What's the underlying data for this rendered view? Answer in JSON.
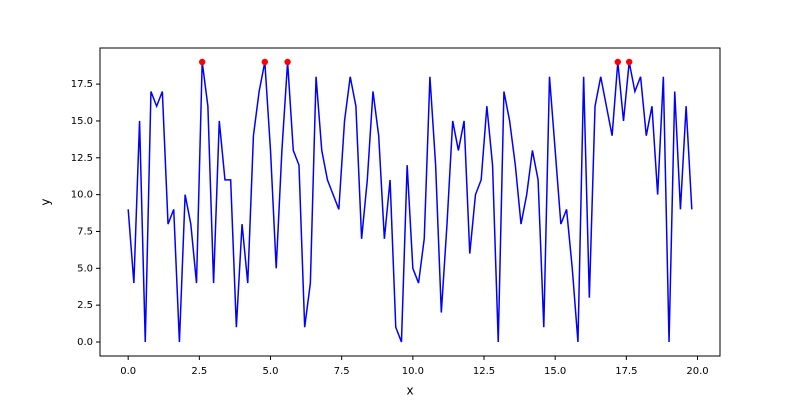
{
  "chart_data": {
    "type": "line",
    "xlabel": "x",
    "ylabel": "y",
    "x": [
      0,
      0.2,
      0.4,
      0.6,
      0.8,
      1,
      1.2,
      1.4,
      1.6,
      1.8,
      2,
      2.2,
      2.4,
      2.6,
      2.8,
      3,
      3.2,
      3.4,
      3.6,
      3.8,
      4,
      4.2,
      4.4,
      4.6,
      4.8,
      5,
      5.2,
      5.4,
      5.6,
      5.8,
      6,
      6.2,
      6.4,
      6.6,
      6.8,
      7,
      7.2,
      7.4,
      7.6,
      7.8,
      8,
      8.2,
      8.4,
      8.6,
      8.8,
      9,
      9.2,
      9.4,
      9.6,
      9.8,
      10,
      10.2,
      10.4,
      10.6,
      10.8,
      11,
      11.2,
      11.4,
      11.6,
      11.8,
      12,
      12.2,
      12.4,
      12.6,
      12.8,
      13,
      13.2,
      13.4,
      13.6,
      13.8,
      14,
      14.2,
      14.4,
      14.6,
      14.8,
      15,
      15.2,
      15.4,
      15.6,
      15.8,
      16,
      16.2,
      16.4,
      16.6,
      16.8,
      17,
      17.2,
      17.4,
      17.6,
      17.8,
      18,
      18.2,
      18.4,
      18.6,
      18.8,
      19,
      19.2,
      19.4,
      19.6,
      19.8
    ],
    "series": [
      {
        "color": "#0000ff",
        "values": [
          9,
          4,
          15,
          0,
          17,
          16,
          17,
          8,
          9,
          0,
          10,
          8,
          4,
          19,
          16,
          4,
          15,
          11,
          11,
          1,
          8,
          4,
          14,
          17,
          19,
          13,
          5,
          13,
          19,
          13,
          12,
          1,
          4,
          18,
          13,
          11,
          10,
          9,
          15,
          18,
          16,
          7,
          11,
          17,
          14,
          7,
          11,
          1,
          0,
          12,
          5,
          4,
          7,
          18,
          12,
          2,
          8,
          15,
          13,
          15,
          6,
          10,
          11,
          16,
          12,
          0,
          17,
          15,
          12,
          8,
          10,
          13,
          11,
          1,
          18,
          13,
          8,
          9,
          5,
          0,
          18,
          3,
          16,
          18,
          16,
          14,
          19,
          15,
          19,
          17,
          18,
          14,
          16,
          10,
          18,
          0,
          17,
          9,
          16,
          9
        ]
      },
      {
        "type": "scatter",
        "color": "#ff0000",
        "x": [
          2.6,
          4.8,
          5.6,
          17.2,
          17.6
        ],
        "values": [
          19,
          19,
          19,
          19,
          19
        ]
      }
    ],
    "xlim": [
      -0.99,
      20.79
    ],
    "ylim": [
      -0.95,
      19.95
    ],
    "xticks": [
      {
        "value": 0,
        "label": "0.0"
      },
      {
        "value": 2.5,
        "label": "2.5"
      },
      {
        "value": 5,
        "label": "5.0"
      },
      {
        "value": 7.5,
        "label": "7.5"
      },
      {
        "value": 10,
        "label": "10.0"
      },
      {
        "value": 12.5,
        "label": "12.5"
      },
      {
        "value": 15,
        "label": "15.0"
      },
      {
        "value": 17.5,
        "label": "17.5"
      },
      {
        "value": 20,
        "label": "20.0"
      }
    ],
    "yticks": [
      {
        "value": 0,
        "label": "0.0"
      },
      {
        "value": 2.5,
        "label": "2.5"
      },
      {
        "value": 5,
        "label": "5.0"
      },
      {
        "value": 7.5,
        "label": "7.5"
      },
      {
        "value": 10,
        "label": "10.0"
      },
      {
        "value": 12.5,
        "label": "12.5"
      },
      {
        "value": 15,
        "label": "15.0"
      },
      {
        "value": 17.5,
        "label": "17.5"
      }
    ]
  }
}
